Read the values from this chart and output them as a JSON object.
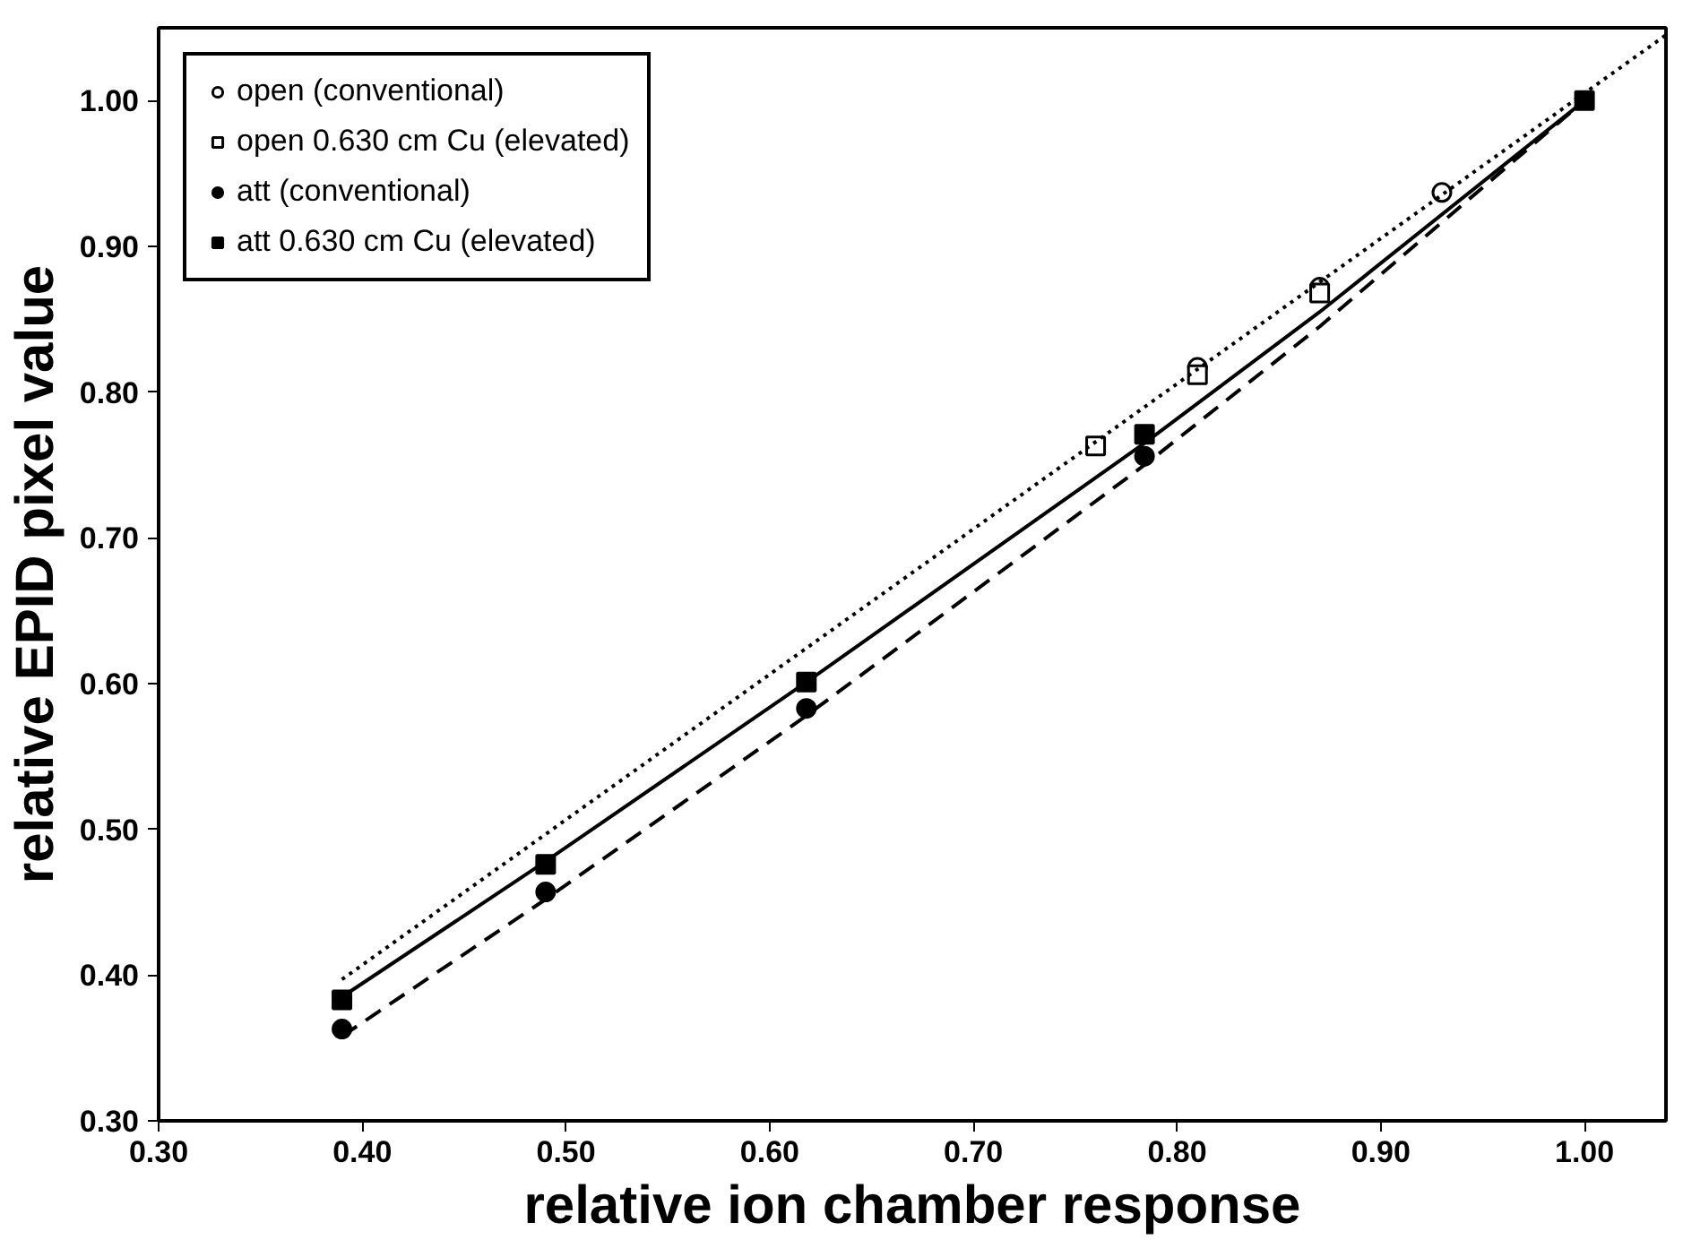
{
  "chart_data": {
    "type": "scatter",
    "xlabel": "relative ion chamber response",
    "ylabel": "relative EPID pixel value",
    "xlim": [
      0.3,
      1.04
    ],
    "ylim": [
      0.3,
      1.05
    ],
    "xticks": [
      {
        "value": 0.3,
        "label": "0.30"
      },
      {
        "value": 0.4,
        "label": "0.40"
      },
      {
        "value": 0.5,
        "label": "0.50"
      },
      {
        "value": 0.6,
        "label": "0.60"
      },
      {
        "value": 0.7,
        "label": "0.70"
      },
      {
        "value": 0.8,
        "label": "0.80"
      },
      {
        "value": 0.9,
        "label": "0.90"
      },
      {
        "value": 1.0,
        "label": "1.00"
      }
    ],
    "yticks": [
      {
        "value": 0.3,
        "label": "0.30"
      },
      {
        "value": 0.4,
        "label": "0.40"
      },
      {
        "value": 0.5,
        "label": "0.50"
      },
      {
        "value": 0.6,
        "label": "0.60"
      },
      {
        "value": 0.7,
        "label": "0.70"
      },
      {
        "value": 0.8,
        "label": "0.80"
      },
      {
        "value": 0.9,
        "label": "0.90"
      },
      {
        "value": 1.0,
        "label": "1.00"
      }
    ],
    "grid": false,
    "legend": "top left",
    "series": [
      {
        "name": "open (conventional)",
        "color": "#ffffff",
        "marker": "circle",
        "x": [
          0.81,
          0.87,
          0.93
        ],
        "values": [
          0.817,
          0.872,
          0.937
        ]
      },
      {
        "name": "open 0.630 cm Cu (elevated)",
        "color": "#ffffff",
        "marker": "square",
        "x": [
          0.76,
          0.81,
          0.87
        ],
        "values": [
          0.763,
          0.812,
          0.868
        ]
      },
      {
        "name": "att (conventional)",
        "color": "#000000",
        "marker": "circle",
        "x": [
          0.39,
          0.49,
          0.618,
          0.784
        ],
        "values": [
          0.363,
          0.457,
          0.583,
          0.756
        ]
      },
      {
        "name": "att 0.630 cm Cu (elevated)",
        "color": "#000000",
        "marker": "square",
        "x": [
          0.39,
          0.49,
          0.618,
          0.784,
          1.0
        ],
        "values": [
          0.383,
          0.476,
          0.601,
          0.771,
          1.0
        ]
      },
      {
        "type": "line",
        "line_style": "dotted",
        "color": "#000000",
        "x": [
          0.39,
          1.04
        ],
        "values": [
          0.397,
          1.045
        ]
      },
      {
        "type": "line",
        "line_style": "solid",
        "color": "#000000",
        "x": [
          0.39,
          0.49,
          0.618,
          0.784,
          0.87,
          1.0
        ],
        "values": [
          0.385,
          0.478,
          0.601,
          0.765,
          0.855,
          1.0
        ]
      },
      {
        "type": "line",
        "line_style": "dashed",
        "color": "#000000",
        "x": [
          0.39,
          0.49,
          0.618,
          0.784,
          0.87,
          1.0
        ],
        "values": [
          0.358,
          0.452,
          0.578,
          0.75,
          0.845,
          1.0
        ]
      }
    ]
  }
}
